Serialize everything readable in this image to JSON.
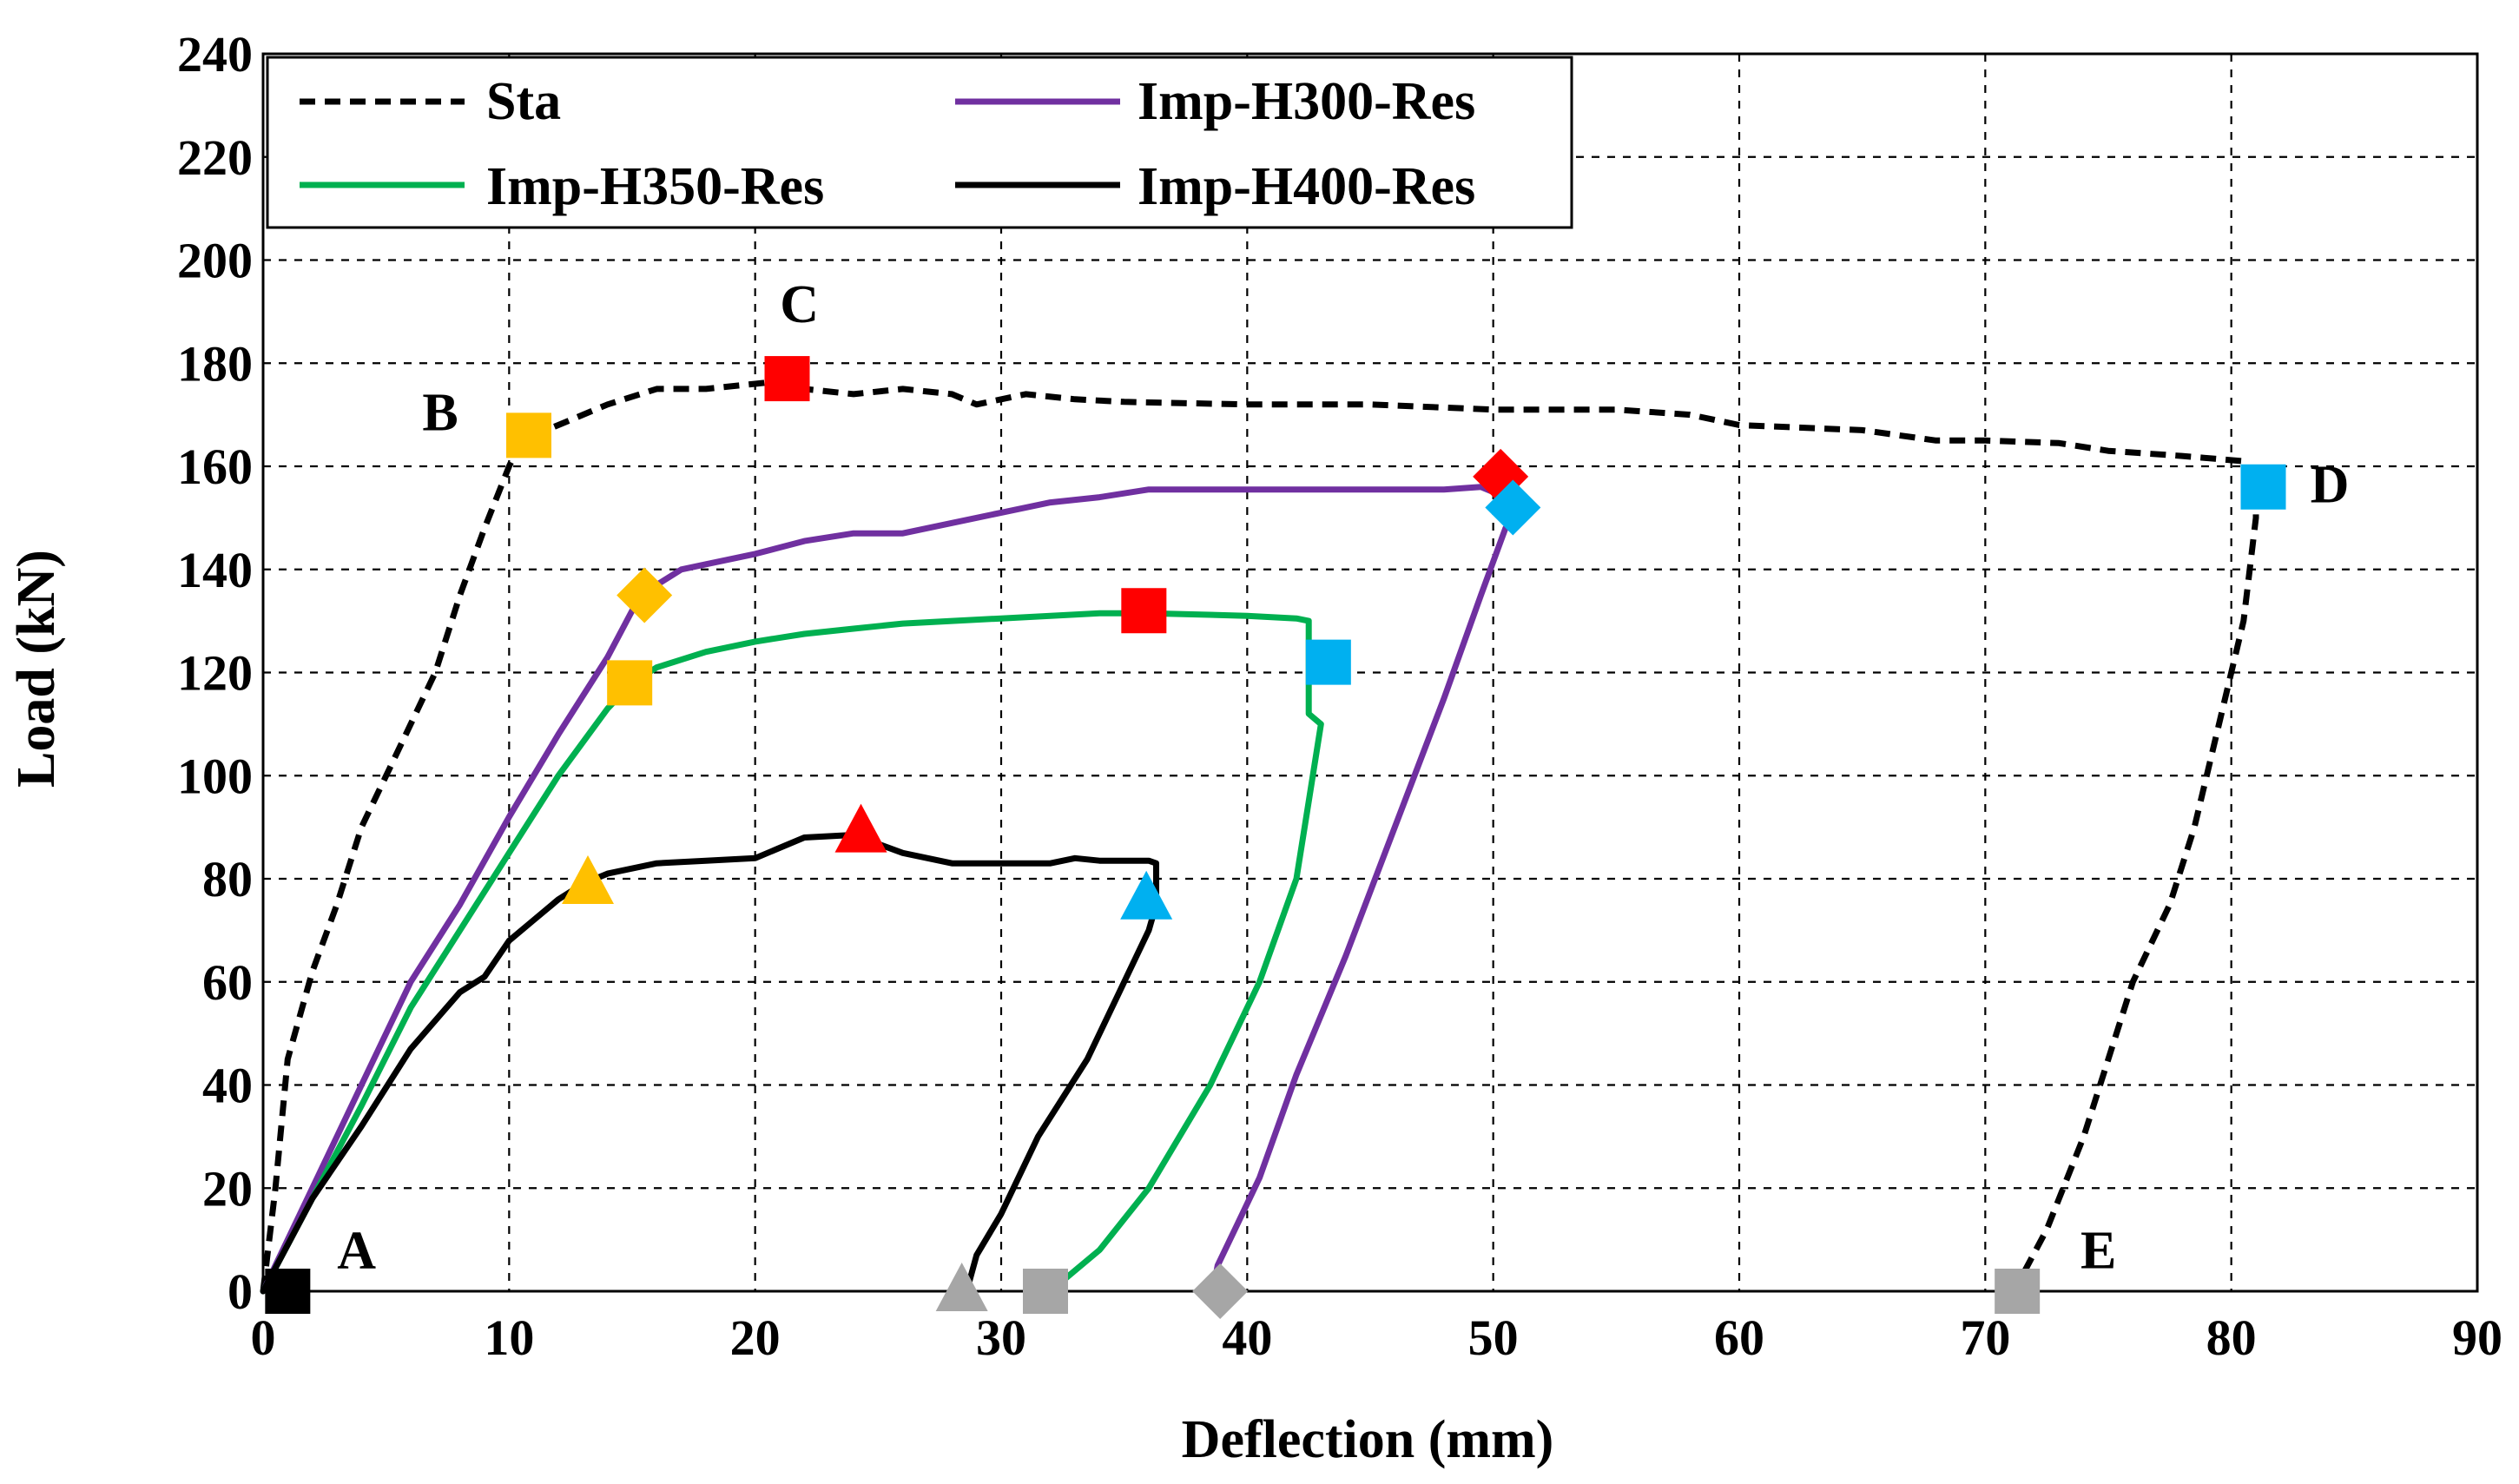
{
  "chart_data": {
    "type": "line",
    "title": "",
    "xlabel": "Deflection (mm)",
    "ylabel": "Load (kN)",
    "xlim": [
      0,
      90
    ],
    "ylim": [
      0,
      240
    ],
    "xticks": [
      0,
      10,
      20,
      30,
      40,
      50,
      60,
      70,
      80,
      90
    ],
    "yticks": [
      0,
      20,
      40,
      60,
      80,
      100,
      120,
      140,
      160,
      180,
      200,
      220,
      240
    ],
    "grid": true,
    "legend_position": "top-left",
    "series": [
      {
        "name": "Sta",
        "color": "#000000",
        "dash": true,
        "points": [
          [
            0,
            0
          ],
          [
            0.5,
            20
          ],
          [
            1,
            45
          ],
          [
            2,
            62
          ],
          [
            3,
            75
          ],
          [
            4,
            90
          ],
          [
            5,
            100
          ],
          [
            6,
            110
          ],
          [
            7,
            120
          ],
          [
            8,
            135
          ],
          [
            9,
            148
          ],
          [
            10,
            160
          ],
          [
            10.5,
            165
          ],
          [
            12,
            168
          ],
          [
            14,
            172
          ],
          [
            16,
            175
          ],
          [
            18,
            175
          ],
          [
            20,
            176
          ],
          [
            21,
            176.5
          ],
          [
            22,
            175
          ],
          [
            24,
            174
          ],
          [
            26,
            175
          ],
          [
            28,
            174
          ],
          [
            29,
            172
          ],
          [
            31,
            174
          ],
          [
            33,
            173
          ],
          [
            35,
            172.5
          ],
          [
            40,
            172
          ],
          [
            45,
            172
          ],
          [
            50,
            171
          ],
          [
            55,
            171
          ],
          [
            58,
            170
          ],
          [
            60,
            168
          ],
          [
            65,
            167
          ],
          [
            68,
            165
          ],
          [
            70,
            165
          ],
          [
            73,
            164.5
          ],
          [
            75,
            163
          ],
          [
            78,
            162
          ],
          [
            80.5,
            161
          ],
          [
            81,
            158
          ],
          [
            81,
            150
          ],
          [
            80.5,
            130
          ],
          [
            79.5,
            110
          ],
          [
            78.5,
            90
          ],
          [
            77.5,
            75
          ],
          [
            76,
            60
          ],
          [
            75,
            45
          ],
          [
            74,
            30
          ],
          [
            72.5,
            12
          ],
          [
            71.5,
            3
          ],
          [
            71,
            0
          ]
        ]
      },
      {
        "name": "Imp-H300-Res",
        "color": "#7030A0",
        "dash": false,
        "points": [
          [
            0,
            0
          ],
          [
            2,
            20
          ],
          [
            4,
            40
          ],
          [
            6,
            60
          ],
          [
            8,
            75
          ],
          [
            10,
            92
          ],
          [
            12,
            108
          ],
          [
            14,
            123
          ],
          [
            15,
            132
          ],
          [
            16,
            137
          ],
          [
            17,
            140
          ],
          [
            18,
            141
          ],
          [
            20,
            143
          ],
          [
            22,
            145.5
          ],
          [
            24,
            147
          ],
          [
            26,
            147
          ],
          [
            28,
            149
          ],
          [
            30,
            151
          ],
          [
            32,
            153
          ],
          [
            34,
            154
          ],
          [
            36,
            155.5
          ],
          [
            40,
            155.5
          ],
          [
            45,
            155.5
          ],
          [
            48,
            155.5
          ],
          [
            49.5,
            156
          ],
          [
            50,
            155
          ],
          [
            50.8,
            150
          ],
          [
            50.5,
            148
          ],
          [
            49.5,
            135
          ],
          [
            48,
            115
          ],
          [
            46,
            90
          ],
          [
            44,
            65
          ],
          [
            42,
            42
          ],
          [
            40.5,
            22
          ],
          [
            39.5,
            12
          ],
          [
            38.8,
            5
          ],
          [
            38.6,
            0
          ]
        ]
      },
      {
        "name": "Imp-H350-Res",
        "color": "#00B050",
        "dash": false,
        "points": [
          [
            0,
            0
          ],
          [
            2,
            18
          ],
          [
            4,
            36
          ],
          [
            6,
            55
          ],
          [
            8,
            70
          ],
          [
            10,
            85
          ],
          [
            12,
            100
          ],
          [
            14,
            113
          ],
          [
            15,
            118
          ],
          [
            16,
            121
          ],
          [
            18,
            124
          ],
          [
            20,
            126
          ],
          [
            22,
            127.5
          ],
          [
            24,
            128.5
          ],
          [
            26,
            129.5
          ],
          [
            28,
            130
          ],
          [
            30,
            130.5
          ],
          [
            32,
            131
          ],
          [
            34,
            131.5
          ],
          [
            36,
            131.5
          ],
          [
            40,
            131
          ],
          [
            42,
            130.5
          ],
          [
            42.5,
            130
          ],
          [
            42.5,
            115
          ],
          [
            42.5,
            112
          ],
          [
            43,
            110
          ],
          [
            42.5,
            95
          ],
          [
            42,
            80
          ],
          [
            40.5,
            60
          ],
          [
            38.5,
            40
          ],
          [
            36,
            20
          ],
          [
            34,
            8
          ],
          [
            32.5,
            2
          ],
          [
            31.5,
            0
          ]
        ]
      },
      {
        "name": "Imp-H400-Res",
        "color": "#000000",
        "dash": false,
        "points": [
          [
            0,
            0
          ],
          [
            2,
            18
          ],
          [
            4,
            32
          ],
          [
            6,
            47
          ],
          [
            8,
            58
          ],
          [
            9,
            61
          ],
          [
            10,
            68
          ],
          [
            11,
            72
          ],
          [
            12,
            76
          ],
          [
            13,
            79
          ],
          [
            14,
            81
          ],
          [
            16,
            83
          ],
          [
            18,
            83.5
          ],
          [
            20,
            84
          ],
          [
            21,
            86
          ],
          [
            22,
            88
          ],
          [
            24,
            88.5
          ],
          [
            26,
            85
          ],
          [
            28,
            83
          ],
          [
            30,
            83
          ],
          [
            32,
            83
          ],
          [
            33,
            84
          ],
          [
            34,
            83.5
          ],
          [
            36,
            83.5
          ],
          [
            36.3,
            83
          ],
          [
            36.3,
            75
          ],
          [
            36,
            70
          ],
          [
            35,
            60
          ],
          [
            33.5,
            45
          ],
          [
            31.5,
            30
          ],
          [
            30,
            15
          ],
          [
            29,
            7
          ],
          [
            28.6,
            0
          ]
        ]
      }
    ],
    "markers": [
      {
        "x": 1,
        "y": 0,
        "shape": "square",
        "color": "#000000"
      },
      {
        "x": 10.8,
        "y": 166,
        "shape": "square",
        "color": "#FFC000"
      },
      {
        "x": 21.3,
        "y": 177,
        "shape": "square",
        "color": "#FF0000"
      },
      {
        "x": 81.3,
        "y": 156,
        "shape": "square",
        "color": "#00B0F0"
      },
      {
        "x": 71.3,
        "y": 0,
        "shape": "square",
        "color": "#A6A6A6"
      },
      {
        "x": 15.5,
        "y": 135,
        "shape": "diamond",
        "color": "#FFC000"
      },
      {
        "x": 50.3,
        "y": 158,
        "shape": "diamond",
        "color": "#FF0000"
      },
      {
        "x": 50.8,
        "y": 152,
        "shape": "diamond",
        "color": "#00B0F0"
      },
      {
        "x": 38.9,
        "y": 0,
        "shape": "diamond",
        "color": "#A6A6A6"
      },
      {
        "x": 14.9,
        "y": 118,
        "shape": "square",
        "color": "#FFC000"
      },
      {
        "x": 35.8,
        "y": 132,
        "shape": "square",
        "color": "#FF0000"
      },
      {
        "x": 43.3,
        "y": 122,
        "shape": "square",
        "color": "#00B0F0"
      },
      {
        "x": 31.8,
        "y": 0,
        "shape": "square",
        "color": "#A6A6A6"
      },
      {
        "x": 13.2,
        "y": 79,
        "shape": "triangle",
        "color": "#FFC000"
      },
      {
        "x": 24.3,
        "y": 89,
        "shape": "triangle",
        "color": "#FF0000"
      },
      {
        "x": 35.9,
        "y": 76,
        "shape": "triangle",
        "color": "#00B0F0"
      },
      {
        "x": 28.4,
        "y": 0,
        "shape": "triangle",
        "color": "#A6A6A6"
      }
    ],
    "point_labels": [
      {
        "text": "A",
        "x": 3.8,
        "y": 4.5
      },
      {
        "text": "B",
        "x": 7.2,
        "y": 167
      },
      {
        "text": "C",
        "x": 21.8,
        "y": 188
      },
      {
        "text": "D",
        "x": 84,
        "y": 153
      },
      {
        "text": "E",
        "x": 74.6,
        "y": 4.5
      }
    ]
  }
}
